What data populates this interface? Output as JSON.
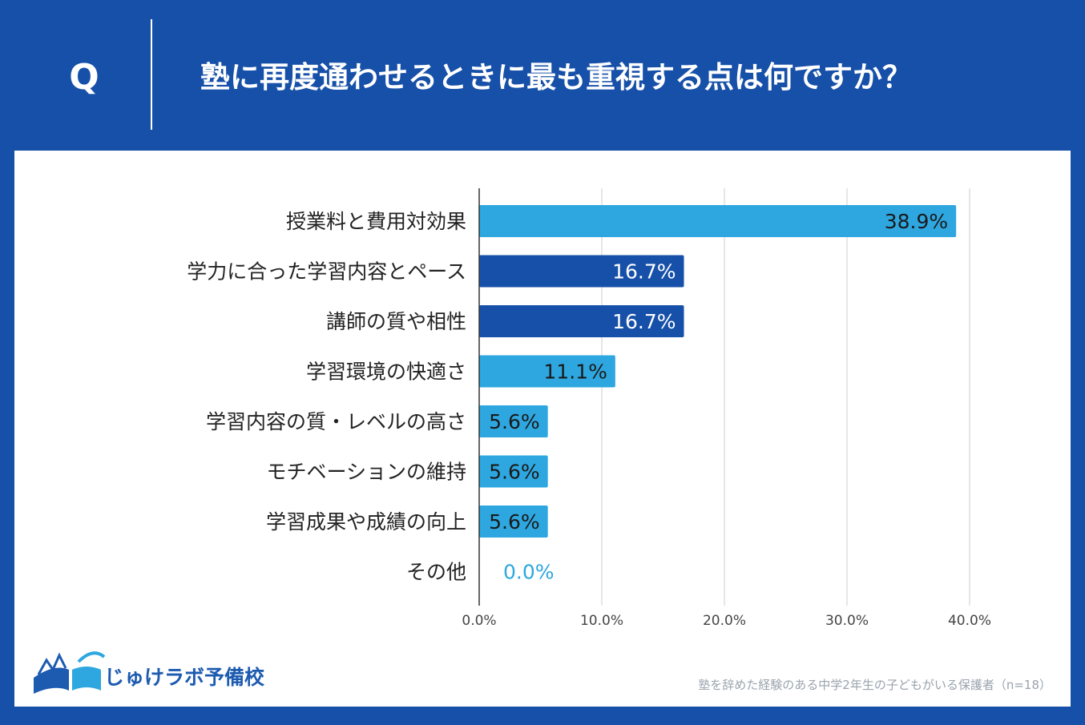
{
  "header": {
    "q_mark": "Q",
    "question": "塾に再度通わせるときに最も重視する点は何ですか？"
  },
  "colors": {
    "background": "#1750a8",
    "panel": "#ffffff",
    "bar_light": "#2ea7e0",
    "bar_dark": "#1750a8",
    "grid": "#cccccc",
    "zero_label": "#2ea7e0"
  },
  "chart_data": {
    "type": "bar",
    "orientation": "horizontal",
    "title": "塾に再度通わせるときに最も重視する点は何ですか？",
    "categories": [
      "授業料と費用対効果",
      "学力に合った学習内容とペース",
      "講師の質や相性",
      "学習環境の快適さ",
      "学習内容の質・レベルの高さ",
      "モチベーションの維持",
      "学習成果や成績の向上",
      "その他"
    ],
    "values": [
      38.9,
      16.7,
      16.7,
      11.1,
      5.6,
      5.6,
      5.6,
      0.0
    ],
    "value_labels": [
      "38.9%",
      "16.7%",
      "16.7%",
      "11.1%",
      "5.6%",
      "5.6%",
      "5.6%",
      "0.0%"
    ],
    "bar_colors": [
      "#2ea7e0",
      "#1750a8",
      "#1750a8",
      "#2ea7e0",
      "#2ea7e0",
      "#2ea7e0",
      "#2ea7e0",
      "#2ea7e0"
    ],
    "xlim": [
      0,
      40
    ],
    "xticks": [
      0,
      10,
      20,
      30,
      40
    ],
    "xtick_labels": [
      "0.0%",
      "10.0%",
      "20.0%",
      "30.0%",
      "40.0%"
    ],
    "grid": true,
    "xlabel": "",
    "ylabel": ""
  },
  "footer": {
    "logo_text": "じゅけラボ予備校",
    "note": "塾を辞めた経験のある中学2年生の子どもがいる保護者（n=18）"
  }
}
